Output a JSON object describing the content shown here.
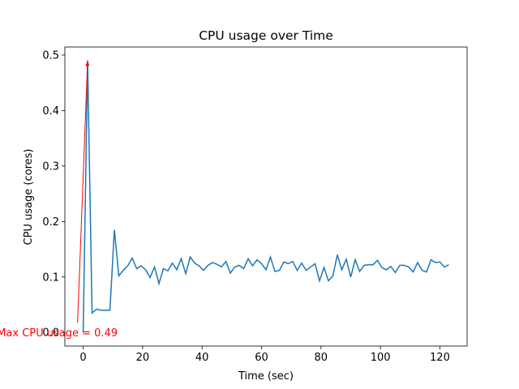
{
  "chart_data": {
    "type": "line",
    "title": "CPU usage over Time",
    "xlabel": "Time (sec)",
    "ylabel": "CPU usage (cores)",
    "x": [
      0,
      1.5,
      3,
      4.5,
      6,
      7.5,
      9,
      10.5,
      12,
      13.5,
      15,
      16.5,
      18,
      19.5,
      21,
      22.5,
      24,
      25.5,
      27,
      28.5,
      30,
      31.5,
      33,
      34.5,
      36,
      37.5,
      39,
      40.5,
      42,
      43.5,
      45,
      46.5,
      48,
      49.5,
      51,
      52.5,
      54,
      55.5,
      57,
      58.5,
      60,
      61.5,
      63,
      64.5,
      66,
      67.5,
      69,
      70.5,
      72,
      73.5,
      75,
      76.5,
      78,
      79.5,
      81,
      82.5,
      84,
      85.5,
      87,
      88.5,
      90,
      91.5,
      93,
      94.5,
      96,
      97.5,
      99,
      100.5,
      102,
      103.5,
      105,
      106.5,
      108,
      109.5,
      111,
      112.5,
      114,
      115.5,
      117,
      118.5,
      120,
      121.5,
      123
    ],
    "series": [
      {
        "name": "CPU usage",
        "color": "#1f77b4",
        "values": [
          0.0,
          0.49,
          0.035,
          0.042,
          0.04,
          0.04,
          0.04,
          0.185,
          0.102,
          0.112,
          0.12,
          0.134,
          0.115,
          0.12,
          0.113,
          0.099,
          0.118,
          0.088,
          0.115,
          0.111,
          0.125,
          0.113,
          0.133,
          0.106,
          0.136,
          0.125,
          0.12,
          0.112,
          0.121,
          0.126,
          0.123,
          0.118,
          0.128,
          0.107,
          0.118,
          0.121,
          0.115,
          0.133,
          0.12,
          0.131,
          0.124,
          0.113,
          0.136,
          0.11,
          0.112,
          0.127,
          0.124,
          0.128,
          0.112,
          0.125,
          0.112,
          0.118,
          0.124,
          0.093,
          0.117,
          0.093,
          0.102,
          0.14,
          0.113,
          0.132,
          0.1,
          0.131,
          0.11,
          0.121,
          0.122,
          0.122,
          0.13,
          0.117,
          0.113,
          0.119,
          0.108,
          0.121,
          0.121,
          0.118,
          0.109,
          0.126,
          0.112,
          0.109,
          0.131,
          0.126,
          0.127,
          0.118,
          0.122
        ]
      }
    ],
    "annotation": {
      "text": "Max CPU usage = 0.49",
      "color": "#ff0000",
      "xy": [
        1.5,
        0.49
      ],
      "xytext": [
        -8.7,
        0
      ]
    },
    "xlim": [
      -6.15,
      129.15
    ],
    "ylim": [
      -0.0245,
      0.5145
    ],
    "xticks": [
      0,
      20,
      40,
      60,
      80,
      100,
      120
    ],
    "yticks": [
      {
        "value": 0,
        "label": "0.0"
      },
      0.1,
      0.2,
      0.3,
      0.4,
      0.5
    ]
  }
}
